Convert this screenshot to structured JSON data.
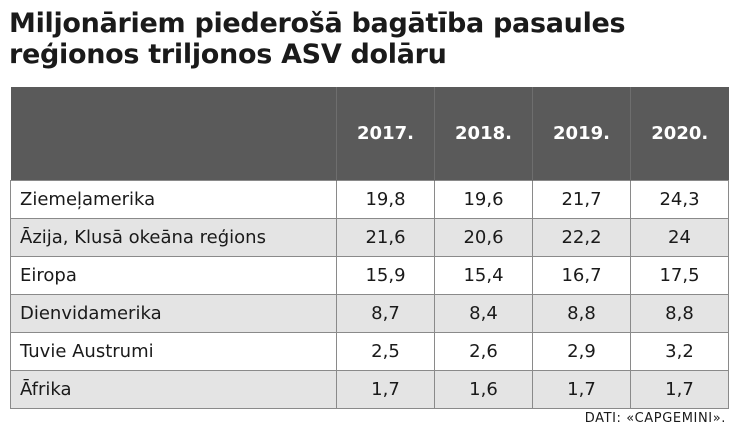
{
  "title_lines": [
    "Miljonāriem piederošā bagātība pasaules",
    "reģionos triljonos ASV dolāru"
  ],
  "source": "DATI: «CAPGEMINI».",
  "chart_data": {
    "type": "table",
    "title": "Miljonāriem piederošā bagātība pasaules reģionos triljonos ASV dolāru",
    "columns": [
      "",
      "2017.",
      "2018.",
      "2019.",
      "2020."
    ],
    "rows": [
      {
        "region": "Ziemeļamerika",
        "values": [
          "19,8",
          "19,6",
          "21,7",
          "24,3"
        ]
      },
      {
        "region": "Āzija, Klusā okeāna reģions",
        "values": [
          "21,6",
          "20,6",
          "22,2",
          "24"
        ]
      },
      {
        "region": "Eiropa",
        "values": [
          "15,9",
          "15,4",
          "16,7",
          "17,5"
        ]
      },
      {
        "region": "Dienvidamerika",
        "values": [
          "8,7",
          "8,4",
          "8,8",
          "8,8"
        ]
      },
      {
        "region": "Tuvie Austrumi",
        "values": [
          "2,5",
          "2,6",
          "2,9",
          "3,2"
        ]
      },
      {
        "region": "Āfrika",
        "values": [
          "1,7",
          "1,6",
          "1,7",
          "1,7"
        ]
      }
    ],
    "colors": {
      "header_bg": "#5a5a5a",
      "header_text": "#ffffff",
      "stripe": "#e4e4e4",
      "border": "#8a8a8a"
    }
  }
}
